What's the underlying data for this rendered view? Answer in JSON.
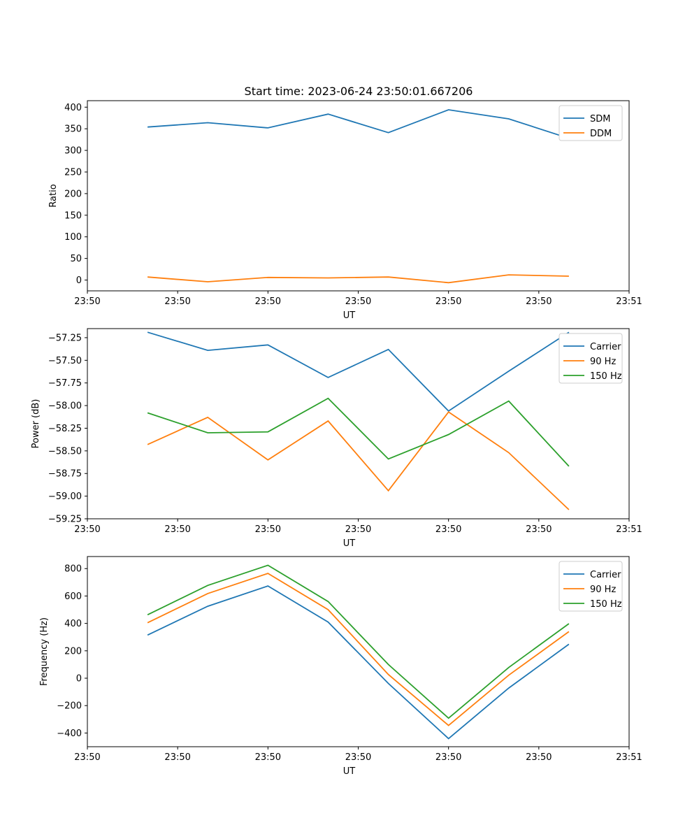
{
  "title": "Start time: 2023-06-24 23:50:01.667206",
  "colors": {
    "blue": "#1f77b4",
    "orange": "#ff7f0e",
    "green": "#2ca02c"
  },
  "chart_data": [
    {
      "type": "line",
      "title": "Start time: 2023-06-24 23:50:01.667206",
      "xlabel": "UT",
      "ylabel": "Ratio",
      "x": [
        1,
        2,
        3,
        4,
        5,
        6,
        7,
        8
      ],
      "xlim": [
        0,
        9
      ],
      "xticks": [
        0,
        1.5,
        3,
        4.5,
        6,
        7.5,
        9
      ],
      "xtick_labels": [
        "23:50",
        "23:50",
        "23:50",
        "23:50",
        "23:50",
        "23:50",
        "23:51"
      ],
      "ylim": [
        -25,
        415
      ],
      "yticks": [
        0,
        50,
        100,
        150,
        200,
        250,
        300,
        350,
        400
      ],
      "legend": "top-right",
      "grid": false,
      "series": [
        {
          "name": "SDM",
          "color": "#1f77b4",
          "values": [
            354,
            364,
            352,
            384,
            341,
            394,
            373,
            328
          ]
        },
        {
          "name": "DDM",
          "color": "#ff7f0e",
          "values": [
            7,
            -4,
            6,
            5,
            7,
            -6,
            12,
            9
          ]
        }
      ]
    },
    {
      "type": "line",
      "title": "",
      "xlabel": "UT",
      "ylabel": "Power (dB)",
      "x": [
        1,
        2,
        3,
        4,
        5,
        6,
        7,
        8
      ],
      "xlim": [
        0,
        9
      ],
      "xticks": [
        0,
        1.5,
        3,
        4.5,
        6,
        7.5,
        9
      ],
      "xtick_labels": [
        "23:50",
        "23:50",
        "23:50",
        "23:50",
        "23:50",
        "23:50",
        "23:51"
      ],
      "ylim": [
        -59.25,
        -57.15
      ],
      "yticks": [
        -59.25,
        -59.0,
        -58.75,
        -58.5,
        -58.25,
        -58.0,
        -57.75,
        -57.5,
        -57.25
      ],
      "ytick_labels": [
        "−59.25",
        "−59.00",
        "−58.75",
        "−58.50",
        "−58.25",
        "−58.00",
        "−57.75",
        "−57.50",
        "−57.25"
      ],
      "legend": "top-right",
      "grid": false,
      "series": [
        {
          "name": "Carrier",
          "color": "#1f77b4",
          "values": [
            -57.19,
            -57.39,
            -57.33,
            -57.69,
            -57.38,
            -58.06,
            -57.62,
            -57.19
          ]
        },
        {
          "name": "90 Hz",
          "color": "#ff7f0e",
          "values": [
            -58.43,
            -58.13,
            -58.6,
            -58.17,
            -58.94,
            -58.07,
            -58.52,
            -59.15
          ]
        },
        {
          "name": "150 Hz",
          "color": "#2ca02c",
          "values": [
            -58.08,
            -58.3,
            -58.29,
            -57.92,
            -58.59,
            -58.32,
            -57.95,
            -58.67
          ]
        }
      ]
    },
    {
      "type": "line",
      "title": "",
      "xlabel": "UT",
      "ylabel": "Frequency (Hz)",
      "x": [
        1,
        2,
        3,
        4,
        5,
        6,
        7,
        8
      ],
      "xlim": [
        0,
        9
      ],
      "xticks": [
        0,
        1.5,
        3,
        4.5,
        6,
        7.5,
        9
      ],
      "xtick_labels": [
        "23:50",
        "23:50",
        "23:50",
        "23:50",
        "23:50",
        "23:50",
        "23:51"
      ],
      "ylim": [
        -500,
        888
      ],
      "yticks": [
        -400,
        -200,
        0,
        200,
        400,
        600,
        800
      ],
      "ytick_labels": [
        "−400",
        "−200",
        "0",
        "200",
        "400",
        "600",
        "800"
      ],
      "legend": "top-right",
      "grid": false,
      "series": [
        {
          "name": "Carrier",
          "color": "#1f77b4",
          "values": [
            315,
            525,
            673,
            410,
            -38,
            -441,
            -72,
            248
          ]
        },
        {
          "name": "90 Hz",
          "color": "#ff7f0e",
          "values": [
            405,
            618,
            765,
            500,
            27,
            -345,
            22,
            340
          ]
        },
        {
          "name": "150 Hz",
          "color": "#2ca02c",
          "values": [
            463,
            677,
            824,
            560,
            100,
            -292,
            78,
            398
          ]
        }
      ]
    }
  ]
}
